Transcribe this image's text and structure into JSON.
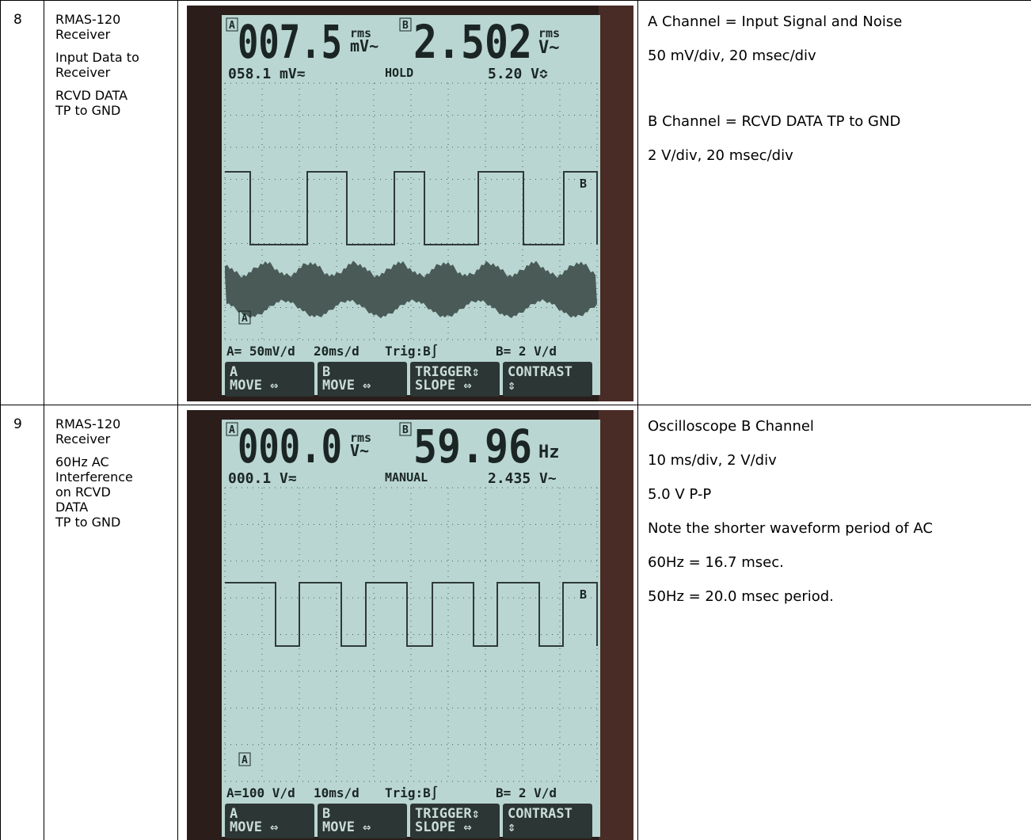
{
  "rows": [
    {
      "number": "8",
      "description": [
        "RMAS-120\nReceiver",
        "Input Data to\nReceiver",
        "RCVD DATA\nTP to GND"
      ],
      "scope": {
        "a_label": "A",
        "a_reading": "007.5",
        "a_rms": "rms",
        "a_unit": "mV~",
        "b_label": "B",
        "b_reading": "2.502",
        "b_rms": "rms",
        "b_unit": "V~",
        "sub_left": "058.1 mV≂",
        "status": "HOLD",
        "sub_right": "5.20 V≎",
        "trace_b": "B",
        "trace_a": "A",
        "footer": [
          "A= 50mV/d",
          "20ms/d",
          "Trig:B∫",
          "B= 2 V/d"
        ],
        "softkeys": [
          "A\nMOVE ⇔",
          "B\nMOVE ⇔",
          "TRIGGER⇕\nSLOPE ⇔",
          "CONTRAST\n⇕"
        ]
      },
      "notes": [
        "A Channel = Input Signal and Noise",
        "50 mV/div, 20 msec/div",
        "B Channel = RCVD DATA TP to GND",
        "2 V/div, 20 msec/div"
      ]
    },
    {
      "number": "9",
      "description": [
        "RMAS-120\nReceiver",
        "60Hz AC\nInterference\non RCVD\nDATA\nTP to GND"
      ],
      "scope": {
        "a_label": "A",
        "a_reading": "000.0",
        "a_rms": "rms",
        "a_unit": "V~",
        "b_label": "B",
        "b_reading": "59.96",
        "b_rms": "",
        "b_unit": "Hz",
        "sub_left": "000.1 V≂",
        "status": "MANUAL",
        "sub_right": "2.435 V~",
        "trace_b": "B",
        "trace_a": "A",
        "footer": [
          "A=100 V/d",
          "10ms/d",
          "Trig:B∫",
          "B= 2 V/d"
        ],
        "softkeys": [
          "A\nMOVE ⇔",
          "B\nMOVE ⇔",
          "TRIGGER⇕\nSLOPE ⇔",
          "CONTRAST\n⇕"
        ]
      },
      "notes": [
        "Oscilloscope B Channel",
        "10 ms/div, 2 V/div",
        "5.0 V P-P",
        "Note the shorter waveform period of AC",
        "60Hz = 16.7 msec.",
        "50Hz = 20.0 msec period."
      ]
    }
  ]
}
